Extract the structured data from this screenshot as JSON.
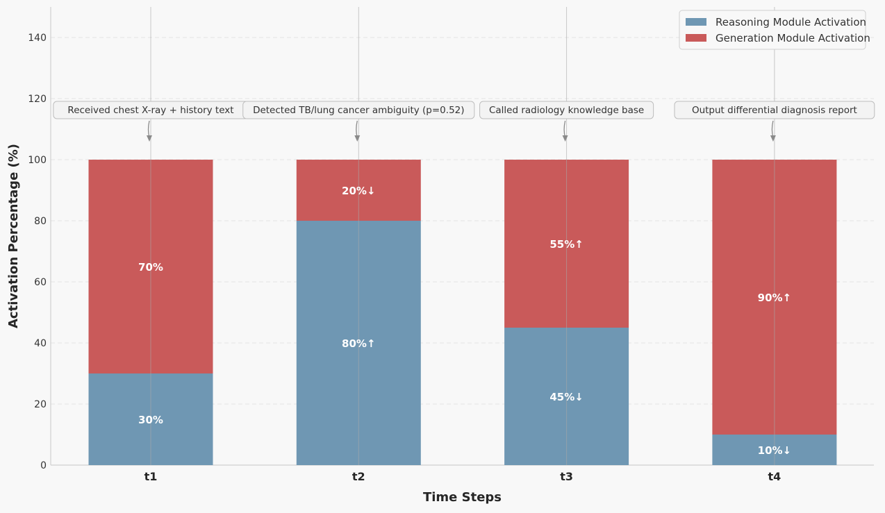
{
  "chart_data": {
    "type": "bar",
    "stacked": true,
    "categories": [
      "t1",
      "t2",
      "t3",
      "t4"
    ],
    "series": [
      {
        "name": "Reasoning Module Activation",
        "values": [
          30,
          80,
          45,
          10
        ],
        "labels": [
          "30%",
          "80%↑",
          "45%↓",
          "10%↓"
        ],
        "color": "#6f97b3"
      },
      {
        "name": "Generation Module Activation",
        "values": [
          70,
          20,
          55,
          90
        ],
        "labels": [
          "70%",
          "20%↓",
          "55%↑",
          "90%↑"
        ],
        "color": "#c95a5a"
      }
    ],
    "annotations": [
      "Received chest X-ray + history text",
      "Detected TB/lung cancer ambiguity (p=0.52)",
      "Called radiology knowledge base",
      "Output differential diagnosis report"
    ],
    "xlabel": "Time Steps",
    "ylabel": "Activation Percentage (%)",
    "ylim": [
      0,
      150
    ],
    "yticks": [
      0,
      20,
      40,
      60,
      80,
      100,
      120,
      140
    ],
    "grid": true,
    "legend_position": "top-right"
  }
}
